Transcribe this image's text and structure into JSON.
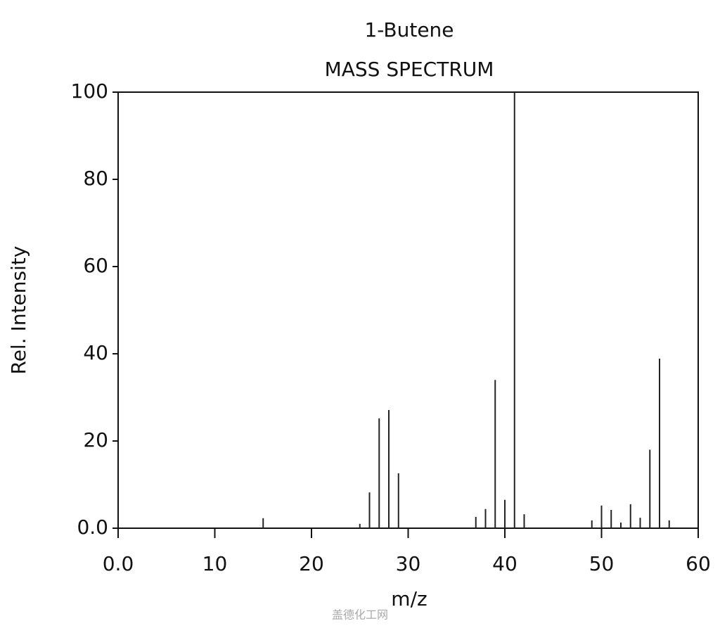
{
  "chart_data": {
    "type": "stem",
    "title": "1-Butene",
    "subtitle": "MASS SPECTRUM",
    "x_label": "m/z",
    "y_label": "Rel. Intensity",
    "color": "#222222",
    "x": [
      15,
      25,
      26,
      27,
      28,
      29,
      37,
      38,
      39,
      40,
      41,
      42,
      49,
      50,
      51,
      52,
      53,
      54,
      55,
      56,
      57
    ],
    "values": [
      2.3,
      1,
      8.2,
      25.2,
      27.1,
      12.6,
      2.6,
      4.4,
      34,
      6.5,
      100,
      3.2,
      1.8,
      5.2,
      4.2,
      1.3,
      5.5,
      2.4,
      18,
      38.9,
      1.8
    ],
    "xlim": [
      0,
      60
    ],
    "ylim": [
      0,
      100
    ],
    "xticks": [
      {
        "value": 0,
        "label": "0.0"
      },
      10,
      20,
      30,
      40,
      50,
      60
    ],
    "yticks": [
      {
        "value": 0,
        "label": "0.0"
      },
      20,
      40,
      60,
      80,
      100
    ],
    "grid": false
  },
  "watermark": "盖德化工网"
}
